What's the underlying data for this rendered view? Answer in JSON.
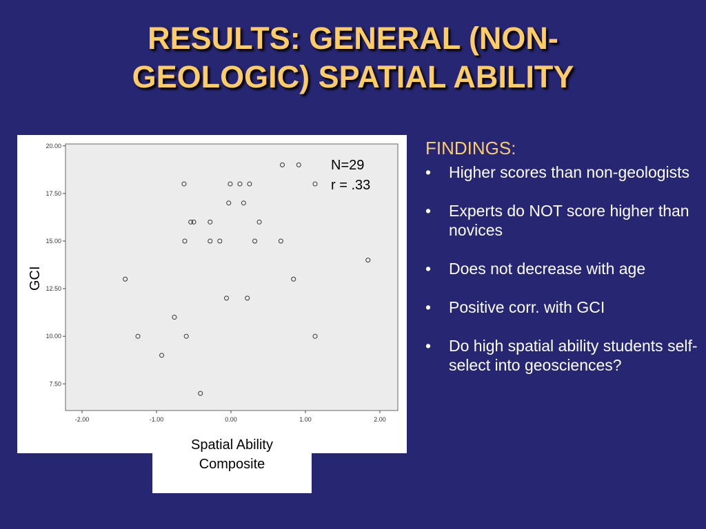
{
  "slide": {
    "title_lines": [
      "RESULTS: GENERAL (NON-",
      "GEOLOGIC) SPATIAL ABILITY"
    ]
  },
  "findings": {
    "heading": "FINDINGS:",
    "bullet_char": "•",
    "items": [
      "Higher scores than non-geologists",
      "Experts do NOT score higher than novices",
      "Does not decrease with age",
      "Positive corr. with GCI",
      "Do high spatial ability students self-select into geosciences?"
    ]
  },
  "colors": {
    "background": "#262673",
    "title": "#ffcc66",
    "heading": "#ffcc66",
    "body_text": "#ffffff",
    "plot_area": "#ececec"
  },
  "chart_data": {
    "type": "scatter",
    "xlabel_lines": [
      "Spatial Ability",
      "Composite"
    ],
    "ylabel": "GCI",
    "xlim": [
      -2.0,
      2.0
    ],
    "ylim": [
      6.1,
      20.1
    ],
    "xticks": [
      -2.0,
      -1.0,
      0.0,
      1.0,
      2.0
    ],
    "xtick_labels": [
      "-2.00",
      "-1.00",
      "0.00",
      "1.00",
      "2.00"
    ],
    "yticks": [
      7.5,
      10.0,
      12.5,
      15.0,
      17.5,
      20.0
    ],
    "ytick_labels": [
      "7.50",
      "10.00",
      "12.50",
      "15.00",
      "17.50",
      "20.00"
    ],
    "grid": false,
    "annotations": [
      "N=29",
      "r = .33"
    ],
    "points": [
      {
        "x": -1.42,
        "y": 13
      },
      {
        "x": -1.25,
        "y": 10
      },
      {
        "x": -0.93,
        "y": 9
      },
      {
        "x": -0.76,
        "y": 11
      },
      {
        "x": -0.63,
        "y": 18
      },
      {
        "x": -0.62,
        "y": 15
      },
      {
        "x": -0.6,
        "y": 10
      },
      {
        "x": -0.54,
        "y": 16
      },
      {
        "x": -0.5,
        "y": 16
      },
      {
        "x": -0.41,
        "y": 7
      },
      {
        "x": -0.28,
        "y": 16
      },
      {
        "x": -0.28,
        "y": 15
      },
      {
        "x": -0.15,
        "y": 15
      },
      {
        "x": -0.06,
        "y": 12
      },
      {
        "x": -0.03,
        "y": 17
      },
      {
        "x": -0.01,
        "y": 18
      },
      {
        "x": 0.12,
        "y": 18
      },
      {
        "x": 0.17,
        "y": 17
      },
      {
        "x": 0.22,
        "y": 12
      },
      {
        "x": 0.25,
        "y": 18
      },
      {
        "x": 0.32,
        "y": 15
      },
      {
        "x": 0.38,
        "y": 16
      },
      {
        "x": 0.67,
        "y": 15
      },
      {
        "x": 0.69,
        "y": 19
      },
      {
        "x": 0.84,
        "y": 13
      },
      {
        "x": 0.91,
        "y": 19
      },
      {
        "x": 1.13,
        "y": 18
      },
      {
        "x": 1.13,
        "y": 10
      },
      {
        "x": 1.84,
        "y": 14
      }
    ]
  }
}
